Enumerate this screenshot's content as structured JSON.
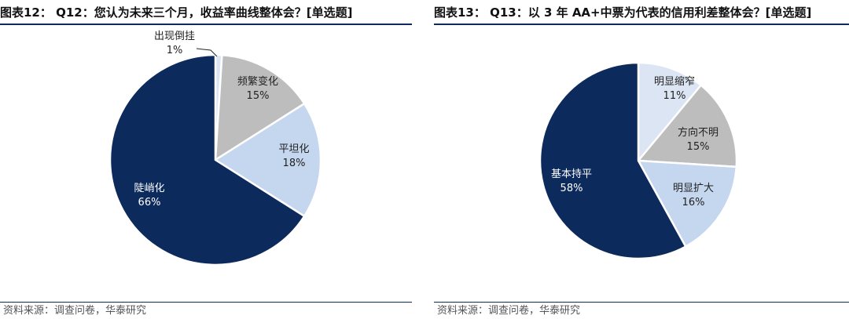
{
  "colors": {
    "navy": "#0d2a5c",
    "gray": "#bdbdbd",
    "light_blue": "#c5d6ef",
    "pale_blue": "#dbe5f3"
  },
  "source_text": "资料来源：调查问卷，华泰研究",
  "chart_data": [
    {
      "type": "pie",
      "title": "图表12： Q12：您认为未来三个月，收益率曲线整体会？[单选题]",
      "slices": [
        {
          "label": "出现倒挂",
          "value": 1,
          "value_label": "1%",
          "color": "#dbe5f3"
        },
        {
          "label": "频繁变化",
          "value": 15,
          "value_label": "15%",
          "color": "#bdbdbd"
        },
        {
          "label": "平坦化",
          "value": 18,
          "value_label": "18%",
          "color": "#c5d6ef"
        },
        {
          "label": "陡峭化",
          "value": 66,
          "value_label": "66%",
          "color": "#0d2a5c"
        }
      ],
      "source": "资料来源：调查问卷，华泰研究"
    },
    {
      "type": "pie",
      "title": "图表13： Q13：以 3 年 AA+中票为代表的信用利差整体会？[单选题]",
      "slices": [
        {
          "label": "明显缩窄",
          "value": 11,
          "value_label": "11%",
          "color": "#dbe5f3"
        },
        {
          "label": "方向不明",
          "value": 15,
          "value_label": "15%",
          "color": "#bdbdbd"
        },
        {
          "label": "明显扩大",
          "value": 16,
          "value_label": "16%",
          "color": "#c5d6ef"
        },
        {
          "label": "基本持平",
          "value": 58,
          "value_label": "58%",
          "color": "#0d2a5c"
        }
      ],
      "source": "资料来源：调查问卷，华泰研究"
    }
  ]
}
